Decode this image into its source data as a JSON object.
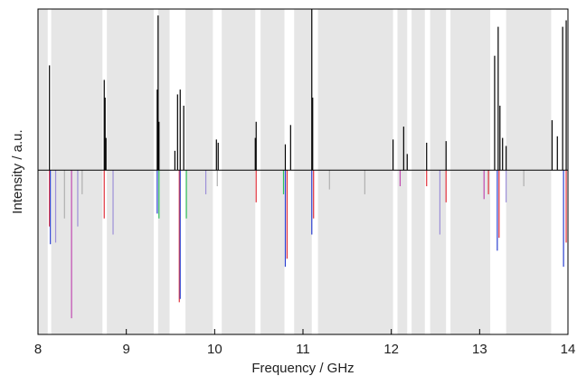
{
  "chart_data": {
    "type": "stick",
    "x_label": "Frequency / GHz",
    "y_label": "Intensity / a.u.",
    "xlim": [
      8,
      14
    ],
    "ylim": [
      -1.02,
      1
    ],
    "xticks": [
      8,
      9,
      10,
      11,
      12,
      13,
      14
    ],
    "shade_color": "#e6e6e6",
    "shaded_regions": [
      [
        8.0,
        8.11
      ],
      [
        8.15,
        8.73
      ],
      [
        8.78,
        9.31
      ],
      [
        9.36,
        9.49
      ],
      [
        9.67,
        9.98
      ],
      [
        10.08,
        10.46
      ],
      [
        10.52,
        10.79
      ],
      [
        10.9,
        11.1
      ],
      [
        11.17,
        12.02
      ],
      [
        12.07,
        12.18
      ],
      [
        12.23,
        12.38
      ],
      [
        12.44,
        12.62
      ],
      [
        12.67,
        13.12
      ],
      [
        13.3,
        13.81
      ]
    ],
    "series": [
      {
        "color": "#000000",
        "x": [
          8.13,
          8.75,
          8.76,
          8.77,
          9.35,
          9.36,
          9.37,
          9.55,
          9.58,
          9.61,
          9.65,
          10.02,
          10.04,
          10.46,
          10.47,
          10.8,
          10.86,
          11.1,
          11.11,
          12.02,
          12.14,
          12.18,
          12.4,
          12.62,
          13.17,
          13.21,
          13.23,
          13.26,
          13.3,
          13.82,
          13.88,
          13.94,
          13.98
        ],
        "values": [
          0.65,
          0.56,
          0.45,
          0.2,
          0.5,
          0.96,
          0.3,
          0.12,
          0.47,
          0.5,
          0.4,
          0.19,
          0.17,
          0.2,
          0.3,
          0.16,
          0.28,
          1.0,
          0.45,
          0.19,
          0.27,
          0.1,
          0.17,
          0.18,
          0.71,
          0.89,
          0.4,
          0.2,
          0.15,
          0.31,
          0.21,
          0.89,
          0.93
        ]
      },
      {
        "color": "#e0303a",
        "x": [
          8.13,
          8.75,
          9.6,
          10.47,
          10.82,
          11.12,
          12.4,
          12.62,
          13.1,
          13.22,
          13.98
        ],
        "values": [
          -0.35,
          -0.3,
          -0.82,
          -0.2,
          -0.55,
          -0.3,
          -0.1,
          -0.2,
          -0.15,
          -0.42,
          -0.45
        ]
      },
      {
        "color": "#2a3fd0",
        "x": [
          8.14,
          9.35,
          9.61,
          10.8,
          11.1,
          13.2,
          13.95
        ],
        "values": [
          -0.46,
          -0.27,
          -0.8,
          -0.6,
          -0.4,
          -0.5,
          -0.6
        ]
      },
      {
        "color": "#2fbf5a",
        "x": [
          9.37,
          9.68,
          10.78
        ],
        "values": [
          -0.3,
          -0.3,
          -0.15
        ]
      },
      {
        "color": "#c04ab0",
        "x": [
          8.38,
          12.1,
          13.05
        ],
        "values": [
          -0.92,
          -0.1,
          -0.18
        ]
      },
      {
        "color": "#9c8fd8",
        "x": [
          8.2,
          8.45,
          8.85,
          9.9,
          12.55,
          13.3
        ],
        "values": [
          -0.45,
          -0.35,
          -0.4,
          -0.15,
          -0.4,
          -0.2
        ]
      },
      {
        "color": "#b0b0b0",
        "x": [
          8.3,
          8.5,
          10.03,
          11.3,
          11.7,
          13.5
        ],
        "values": [
          -0.3,
          -0.15,
          -0.1,
          -0.12,
          -0.15,
          -0.1
        ]
      }
    ]
  }
}
